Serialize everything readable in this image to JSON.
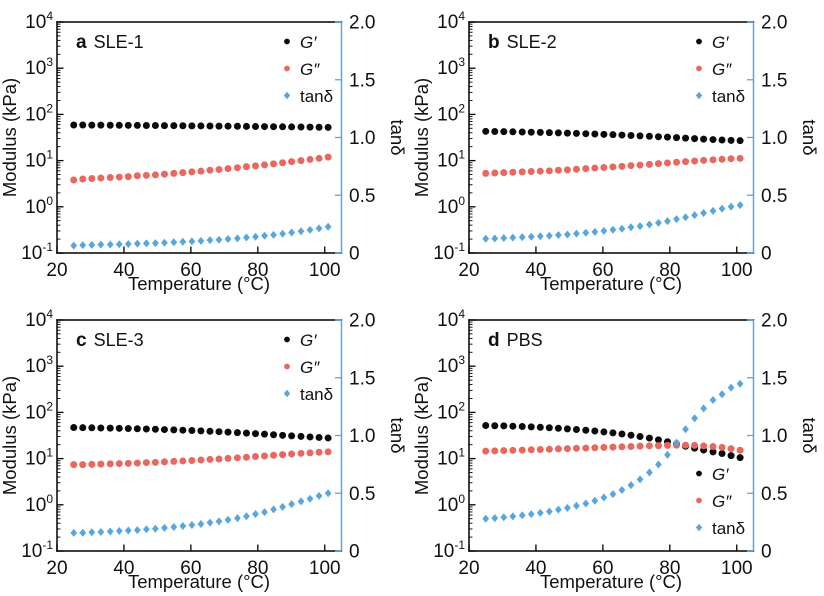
{
  "figure": {
    "colors": {
      "axis": "#000000",
      "text": "#111111",
      "g_prime": "#0b0b0b",
      "g_double_prime": "#EA6760",
      "tan_delta": "#58A7DC"
    }
  },
  "chart_data": [
    {
      "type": "scatter",
      "panel": "a",
      "title": "SLE-1",
      "xlabel": "Temperature (°C)",
      "ylabel_left": "Modulus (kPa)",
      "ylabel_right": "tanδ",
      "x_range": [
        20,
        105
      ],
      "x_ticks": [
        20,
        40,
        60,
        80,
        100
      ],
      "y_left": {
        "scale": "log",
        "range": [
          0.1,
          10000
        ],
        "mantissa": "10",
        "exponents": [
          4,
          3,
          2,
          1,
          0,
          -1
        ]
      },
      "y_right": {
        "scale": "linear",
        "range": [
          0,
          2
        ],
        "ticks": [
          0,
          0.5,
          1.0,
          1.5,
          2.0
        ],
        "tick_labels": [
          "0",
          "0.5",
          "1.0",
          "1.5",
          "2.0"
        ]
      },
      "legend_position": "top-right",
      "x": [
        25,
        27.7,
        30.4,
        33.1,
        35.9,
        38.6,
        41.3,
        44,
        46.7,
        49.4,
        52.1,
        54.9,
        57.6,
        60.3,
        63,
        65.7,
        68.4,
        71.1,
        73.9,
        76.6,
        79.3,
        82,
        84.7,
        87.4,
        90.1,
        92.9,
        95.6,
        98.3,
        101
      ],
      "series": [
        {
          "key": "g_prime",
          "name": "G′",
          "axis": "left",
          "marker": "circle",
          "italic": true,
          "values": [
            59,
            58.8,
            58.7,
            58.5,
            58.3,
            58.1,
            58,
            57.8,
            57.6,
            57.4,
            57.2,
            57,
            56.8,
            56.5,
            56.3,
            56.1,
            55.8,
            55.6,
            55.3,
            55.1,
            54.8,
            54.5,
            54.2,
            53.9,
            53.6,
            53.3,
            53,
            52.7,
            52.4
          ]
        },
        {
          "key": "g_double_prime",
          "name": "G″",
          "axis": "left",
          "marker": "circle",
          "italic": true,
          "values": [
            3.8,
            4,
            4.1,
            4.2,
            4.3,
            4.4,
            4.5,
            4.7,
            4.8,
            4.9,
            5.1,
            5.3,
            5.5,
            5.7,
            5.9,
            6.2,
            6.4,
            6.7,
            7,
            7.4,
            7.7,
            8.1,
            8.5,
            9,
            9.5,
            10,
            10.6,
            11.2,
            11.9
          ]
        },
        {
          "key": "tan_delta",
          "name": "tanδ",
          "axis": "right",
          "marker": "diamond",
          "italic": false,
          "values": [
            0.064,
            0.068,
            0.07,
            0.072,
            0.074,
            0.076,
            0.078,
            0.081,
            0.083,
            0.085,
            0.089,
            0.093,
            0.097,
            0.101,
            0.105,
            0.111,
            0.115,
            0.121,
            0.127,
            0.134,
            0.141,
            0.149,
            0.157,
            0.167,
            0.177,
            0.188,
            0.2,
            0.213,
            0.227
          ]
        }
      ]
    },
    {
      "type": "scatter",
      "panel": "b",
      "title": "SLE-2",
      "xlabel": "Temperature (°C)",
      "ylabel_left": "Modulus (kPa)",
      "ylabel_right": "tanδ",
      "x_range": [
        20,
        105
      ],
      "x_ticks": [
        20,
        40,
        60,
        80,
        100
      ],
      "y_left": {
        "scale": "log",
        "range": [
          0.1,
          10000
        ],
        "mantissa": "10",
        "exponents": [
          4,
          3,
          2,
          1,
          0,
          -1
        ]
      },
      "y_right": {
        "scale": "linear",
        "range": [
          0,
          2
        ],
        "ticks": [
          0,
          0.5,
          1.0,
          1.5,
          2.0
        ],
        "tick_labels": [
          "0",
          "0.5",
          "1.0",
          "1.5",
          "2.0"
        ]
      },
      "legend_position": "top-right",
      "x": [
        25,
        27.7,
        30.4,
        33.1,
        35.9,
        38.6,
        41.3,
        44,
        46.7,
        49.4,
        52.1,
        54.9,
        57.6,
        60.3,
        63,
        65.7,
        68.4,
        71.1,
        73.9,
        76.6,
        79.3,
        82,
        84.7,
        87.4,
        90.1,
        92.9,
        95.6,
        98.3,
        101
      ],
      "series": [
        {
          "key": "g_prime",
          "name": "G′",
          "axis": "left",
          "marker": "circle",
          "italic": true,
          "values": [
            43,
            42.7,
            42.4,
            42,
            41.6,
            41.2,
            40.8,
            40.3,
            39.8,
            39.3,
            38.8,
            38.2,
            37.6,
            37,
            36.4,
            35.7,
            35,
            34.3,
            33.6,
            32.9,
            32.2,
            31.4,
            30.7,
            29.9,
            29.2,
            28.5,
            27.9,
            27.4,
            27
          ]
        },
        {
          "key": "g_double_prime",
          "name": "G″",
          "axis": "left",
          "marker": "circle",
          "italic": true,
          "values": [
            5.3,
            5.4,
            5.5,
            5.6,
            5.7,
            5.8,
            5.9,
            6,
            6.2,
            6.3,
            6.5,
            6.7,
            6.9,
            7.1,
            7.3,
            7.5,
            7.8,
            8,
            8.3,
            8.6,
            8.9,
            9.2,
            9.5,
            9.8,
            10.1,
            10.4,
            10.7,
            11,
            11.2
          ]
        },
        {
          "key": "tan_delta",
          "name": "tanδ",
          "axis": "right",
          "marker": "diamond",
          "italic": false,
          "values": [
            0.123,
            0.126,
            0.13,
            0.133,
            0.137,
            0.141,
            0.145,
            0.149,
            0.156,
            0.16,
            0.168,
            0.175,
            0.183,
            0.192,
            0.201,
            0.21,
            0.223,
            0.233,
            0.247,
            0.261,
            0.276,
            0.293,
            0.309,
            0.328,
            0.346,
            0.365,
            0.384,
            0.401,
            0.415
          ]
        }
      ]
    },
    {
      "type": "scatter",
      "panel": "c",
      "title": "SLE-3",
      "xlabel": "Temperature (°C)",
      "ylabel_left": "Modulus (kPa)",
      "ylabel_right": "tanδ",
      "x_range": [
        20,
        105
      ],
      "x_ticks": [
        20,
        40,
        60,
        80,
        100
      ],
      "y_left": {
        "scale": "log",
        "range": [
          0.1,
          10000
        ],
        "mantissa": "10",
        "exponents": [
          4,
          3,
          2,
          1,
          0,
          -1
        ]
      },
      "y_right": {
        "scale": "linear",
        "range": [
          0,
          2
        ],
        "ticks": [
          0,
          0.5,
          1.0,
          1.5,
          2.0
        ],
        "tick_labels": [
          "0",
          "0.5",
          "1.0",
          "1.5",
          "2.0"
        ]
      },
      "legend_position": "top-right",
      "x": [
        25,
        27.7,
        30.4,
        33.1,
        35.9,
        38.6,
        41.3,
        44,
        46.7,
        49.4,
        52.1,
        54.9,
        57.6,
        60.3,
        63,
        65.7,
        68.4,
        71.1,
        73.9,
        76.6,
        79.3,
        82,
        84.7,
        87.4,
        90.1,
        92.9,
        95.6,
        98.3,
        101
      ],
      "series": [
        {
          "key": "g_prime",
          "name": "G′",
          "axis": "left",
          "marker": "circle",
          "italic": true,
          "values": [
            47,
            46.7,
            46.4,
            46,
            45.6,
            45.2,
            44.7,
            44.2,
            43.7,
            43.1,
            42.5,
            41.9,
            41.2,
            40.5,
            39.8,
            39,
            38.2,
            37.4,
            36.5,
            35.6,
            34.7,
            33.8,
            32.8,
            31.9,
            31,
            30.2,
            29.4,
            28.7,
            28
          ]
        },
        {
          "key": "g_double_prime",
          "name": "G″",
          "axis": "left",
          "marker": "circle",
          "italic": true,
          "values": [
            7.4,
            7.4,
            7.5,
            7.6,
            7.7,
            7.8,
            7.9,
            8,
            8.2,
            8.3,
            8.5,
            8.7,
            8.9,
            9.1,
            9.3,
            9.6,
            9.8,
            10.1,
            10.4,
            10.7,
            11.1,
            11.4,
            11.8,
            12.2,
            12.6,
            13,
            13.3,
            13.7,
            14
          ]
        },
        {
          "key": "tan_delta",
          "name": "tanδ",
          "axis": "right",
          "marker": "diamond",
          "italic": false,
          "values": [
            0.157,
            0.158,
            0.162,
            0.165,
            0.169,
            0.173,
            0.177,
            0.181,
            0.188,
            0.193,
            0.2,
            0.208,
            0.216,
            0.225,
            0.234,
            0.246,
            0.257,
            0.27,
            0.285,
            0.301,
            0.32,
            0.337,
            0.36,
            0.382,
            0.406,
            0.43,
            0.452,
            0.477,
            0.5
          ]
        }
      ]
    },
    {
      "type": "scatter",
      "panel": "d",
      "title": "PBS",
      "xlabel": "Temperature (°C)",
      "ylabel_left": "Modulus (kPa)",
      "ylabel_right": "tanδ",
      "x_range": [
        20,
        105
      ],
      "x_ticks": [
        20,
        40,
        60,
        80,
        100
      ],
      "y_left": {
        "scale": "log",
        "range": [
          0.1,
          10000
        ],
        "mantissa": "10",
        "exponents": [
          4,
          3,
          2,
          1,
          0,
          -1
        ]
      },
      "y_right": {
        "scale": "linear",
        "range": [
          0,
          2
        ],
        "ticks": [
          0,
          0.5,
          1.0,
          1.5,
          2.0
        ],
        "tick_labels": [
          "0",
          "0.5",
          "1.0",
          "1.5",
          "2.0"
        ]
      },
      "legend_position": "bottom-right",
      "x": [
        25,
        27.7,
        30.4,
        33.1,
        35.9,
        38.6,
        41.3,
        44,
        46.7,
        49.4,
        52.1,
        54.9,
        57.6,
        60.3,
        63,
        65.7,
        68.4,
        71.1,
        73.9,
        76.6,
        79.3,
        82,
        84.7,
        87.4,
        90.1,
        92.9,
        95.6,
        98.3,
        101
      ],
      "series": [
        {
          "key": "g_prime",
          "name": "G′",
          "axis": "left",
          "marker": "circle",
          "italic": true,
          "values": [
            52,
            51.5,
            51,
            50.3,
            49.5,
            48.6,
            47.6,
            46.5,
            45.3,
            44,
            42.6,
            41.1,
            39.5,
            37.8,
            36,
            34.1,
            32.1,
            30,
            27.8,
            25.5,
            23.2,
            20.8,
            18.5,
            16.8,
            15.3,
            14,
            12.9,
            11.6,
            10.5
          ]
        },
        {
          "key": "g_double_prime",
          "name": "G″",
          "axis": "left",
          "marker": "circle",
          "italic": true,
          "values": [
            14.5,
            14.7,
            14.9,
            15.1,
            15.3,
            15.5,
            15.7,
            15.9,
            16.2,
            16.4,
            16.7,
            16.9,
            17.2,
            17.5,
            17.7,
            18,
            18.3,
            18.6,
            18.9,
            19.1,
            19.3,
            19.5,
            19.5,
            19.3,
            18.9,
            18.3,
            17.5,
            16.4,
            15.2
          ]
        },
        {
          "key": "tan_delta",
          "name": "tanδ",
          "axis": "right",
          "marker": "diamond",
          "italic": false,
          "values": [
            0.279,
            0.285,
            0.292,
            0.3,
            0.309,
            0.319,
            0.33,
            0.342,
            0.358,
            0.373,
            0.392,
            0.411,
            0.435,
            0.463,
            0.492,
            0.528,
            0.57,
            0.62,
            0.68,
            0.749,
            0.832,
            0.938,
            1.054,
            1.149,
            1.235,
            1.307,
            1.357,
            1.414,
            1.448
          ]
        }
      ]
    }
  ]
}
